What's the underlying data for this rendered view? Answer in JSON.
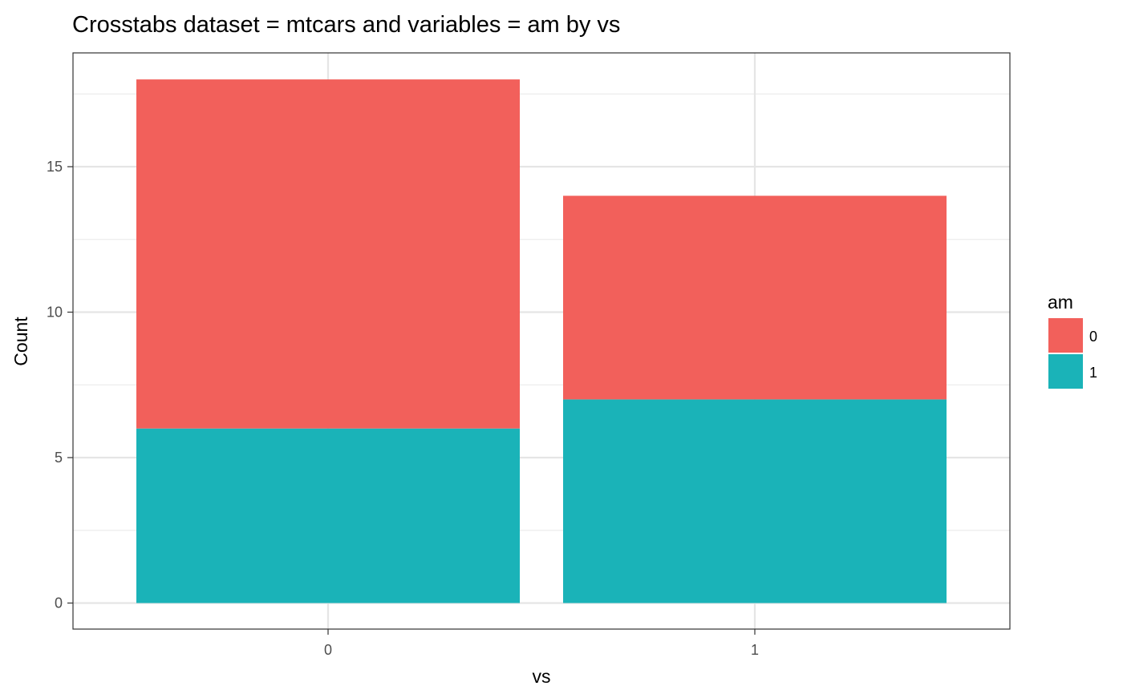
{
  "chart_data": {
    "type": "bar",
    "stacked": true,
    "title": "Crosstabs dataset = mtcars and variables = am by vs",
    "xlabel": "vs",
    "ylabel": "Count",
    "categories": [
      "0",
      "1"
    ],
    "series": [
      {
        "name": "0",
        "values": [
          12,
          7
        ],
        "color": "#F2605B"
      },
      {
        "name": "1",
        "values": [
          6,
          7
        ],
        "color": "#1AB3B8"
      }
    ],
    "ylim": [
      0,
      18.9
    ],
    "yticks": [
      0,
      5,
      10,
      15
    ],
    "grid": true,
    "legend": {
      "title": "am",
      "position": "right"
    }
  }
}
